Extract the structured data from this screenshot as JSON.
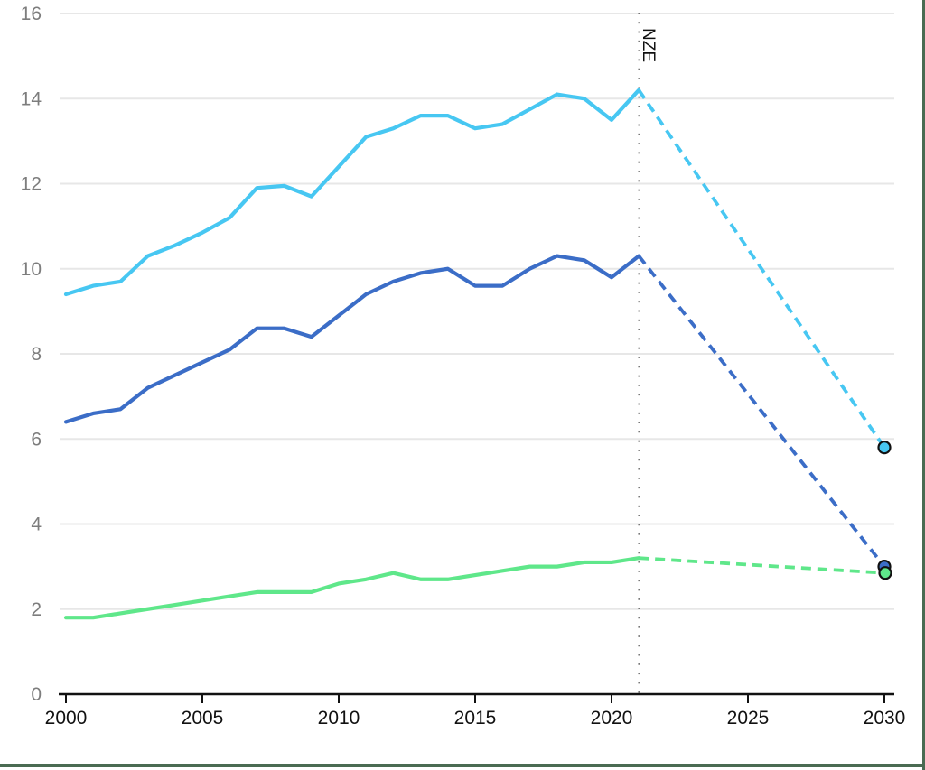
{
  "frame": {
    "border_color": "#4a6b52"
  },
  "chart_data": {
    "type": "line",
    "title": "",
    "xlabel": "",
    "ylabel": "",
    "grid": "horizontal",
    "legend": "none",
    "xlim": [
      2000,
      2030
    ],
    "ylim": [
      0,
      16
    ],
    "x_ticks": [
      2000,
      2005,
      2010,
      2015,
      2020,
      2025,
      2030
    ],
    "y_ticks": [
      0,
      2,
      4,
      6,
      8,
      10,
      12,
      14,
      16
    ],
    "annotation": {
      "label": "NZE",
      "x": 2021,
      "line_style": "dotted",
      "line_color": "#707070",
      "label_color": "#111111"
    },
    "historical_years": [
      2000,
      2001,
      2002,
      2003,
      2004,
      2005,
      2006,
      2007,
      2008,
      2009,
      2010,
      2011,
      2012,
      2013,
      2014,
      2015,
      2016,
      2017,
      2018,
      2019,
      2020,
      2021
    ],
    "scenario_year": 2030,
    "series": [
      {
        "name": "light-blue-series",
        "color": "#47c7f2",
        "values": [
          9.4,
          9.6,
          9.7,
          10.3,
          10.55,
          10.85,
          11.2,
          11.9,
          11.95,
          11.7,
          12.4,
          13.1,
          13.3,
          13.6,
          13.6,
          13.3,
          13.4,
          13.75,
          14.1,
          14.0,
          13.5,
          14.2
        ],
        "scenario_value_2030": 5.8,
        "scenario_style": "dashed",
        "end_marker": true
      },
      {
        "name": "dark-blue-series",
        "color": "#3b6dc7",
        "values": [
          6.4,
          6.6,
          6.7,
          7.2,
          7.5,
          7.8,
          8.1,
          8.6,
          8.6,
          8.4,
          8.9,
          9.4,
          9.7,
          9.9,
          10.0,
          9.6,
          9.6,
          10.0,
          10.3,
          10.2,
          9.8,
          10.3
        ],
        "scenario_value_2030": 3.0,
        "scenario_style": "dashed",
        "end_marker": true
      },
      {
        "name": "green-series",
        "color": "#5fe78a",
        "values": [
          1.8,
          1.8,
          1.9,
          2.0,
          2.1,
          2.2,
          2.3,
          2.4,
          2.4,
          2.4,
          2.6,
          2.7,
          2.85,
          2.7,
          2.7,
          2.8,
          2.9,
          3.0,
          3.0,
          3.1,
          3.1,
          3.2
        ],
        "scenario_value_2030": 2.85,
        "scenario_style": "dashed",
        "end_marker": true
      }
    ],
    "axis_colors": {
      "x_axis_line": "#111111",
      "x_tick_labels": "#111111",
      "y_tick_labels": "#7d7d7d",
      "gridline": "#e7e7e7"
    }
  }
}
